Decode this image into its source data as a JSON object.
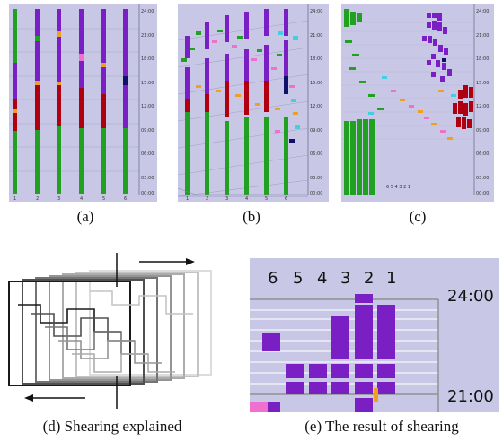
{
  "captions": {
    "a": "(a)",
    "b": "(b)",
    "c": "(c)",
    "d": "(d)  Shearing explained",
    "e": "(e)  The result of shearing"
  },
  "time_axis": [
    "24:00",
    "21:00",
    "18:00",
    "15:00",
    "12:00",
    "09:00",
    "06:00",
    "03:00",
    "00:00"
  ],
  "columns": [
    "1",
    "2",
    "3",
    "4",
    "5",
    "6"
  ],
  "columns_reversed_label": "6 5 4 3 2 1",
  "zoom": {
    "col_labels": [
      "6",
      "5",
      "4",
      "3",
      "2",
      "1"
    ],
    "time_top": "24:00",
    "time_bottom": "21:00"
  },
  "colors": {
    "background": "#c8c8e6",
    "green": "#22a022",
    "purple": "#7a1fc4",
    "red": "#b00010",
    "orange": "#f0a020",
    "pink": "#f070d0",
    "cyan": "#40d0e0",
    "navy": "#10106a"
  }
}
